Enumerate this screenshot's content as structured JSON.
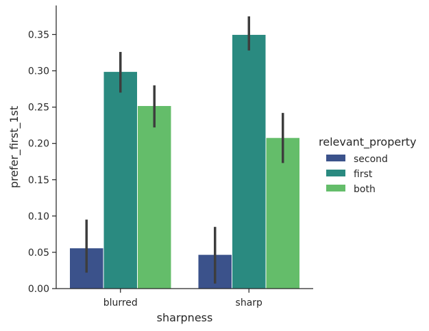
{
  "chart_data": {
    "type": "bar",
    "title": "",
    "xlabel": "sharpness",
    "ylabel": "prefer_first_1st",
    "categories": [
      "blurred",
      "sharp"
    ],
    "ylim": [
      0,
      0.39
    ],
    "yticks": [
      "0.00",
      "0.05",
      "0.10",
      "0.15",
      "0.20",
      "0.25",
      "0.30",
      "0.35"
    ],
    "grid": false,
    "legend": {
      "title": "relevant_property",
      "placement": "right"
    },
    "series": [
      {
        "name": "second",
        "color": "#3b528b",
        "values": [
          0.056,
          0.047
        ],
        "ci_low": [
          0.022,
          0.007
        ],
        "ci_high": [
          0.095,
          0.085
        ]
      },
      {
        "name": "first",
        "color": "#2a8a80",
        "values": [
          0.299,
          0.35
        ],
        "ci_low": [
          0.27,
          0.328
        ],
        "ci_high": [
          0.326,
          0.375
        ]
      },
      {
        "name": "both",
        "color": "#64bd6a",
        "values": [
          0.252,
          0.208
        ],
        "ci_low": [
          0.222,
          0.173
        ],
        "ci_high": [
          0.28,
          0.242
        ]
      }
    ]
  }
}
